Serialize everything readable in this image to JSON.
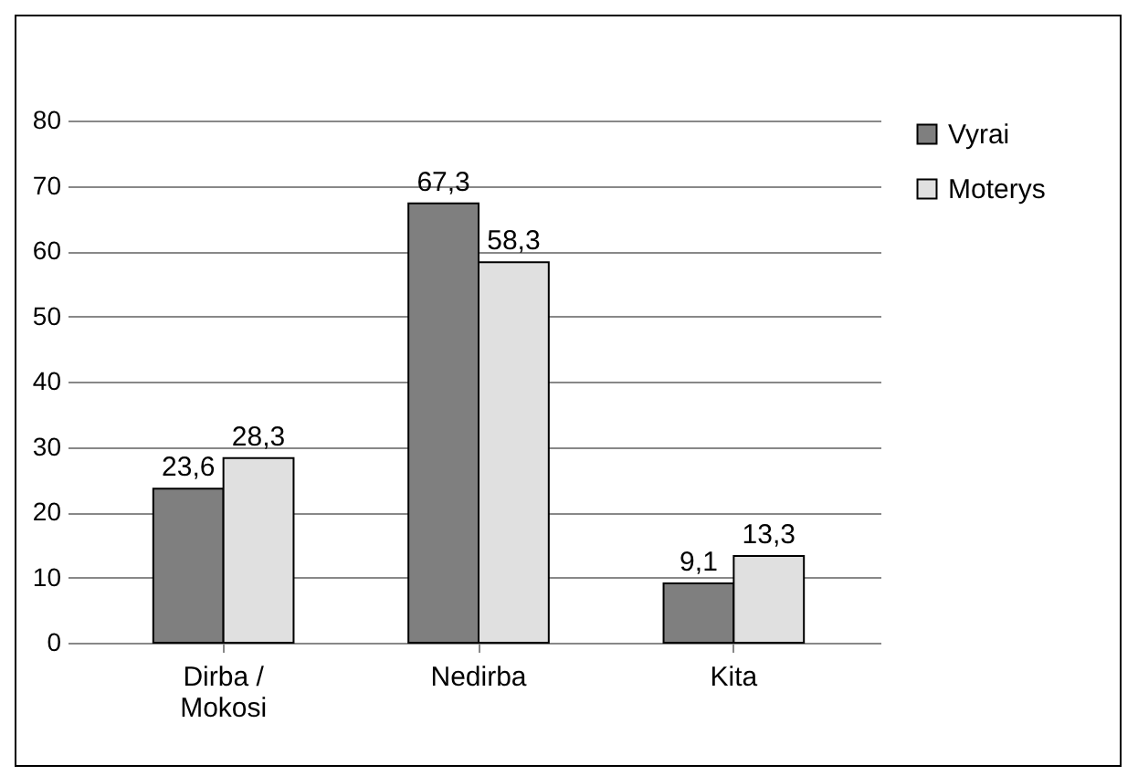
{
  "chart_data": {
    "type": "bar",
    "categories": [
      "Dirba / Mokosi",
      "Nedirba",
      "Kita"
    ],
    "series": [
      {
        "name": "Vyrai",
        "color": "#7f7f7f",
        "values": [
          23.6,
          67.3,
          9.1
        ],
        "value_labels": [
          "23,6",
          "67,3",
          "9,1"
        ]
      },
      {
        "name": "Moterys",
        "color": "#e0e0e0",
        "values": [
          28.3,
          58.3,
          13.3
        ],
        "value_labels": [
          "28,3",
          "58,3",
          "13,3"
        ]
      }
    ],
    "ylim": [
      0,
      80
    ],
    "yticks": [
      0,
      10,
      20,
      30,
      40,
      50,
      60,
      70,
      80
    ],
    "grid": "y",
    "legend": "right"
  }
}
